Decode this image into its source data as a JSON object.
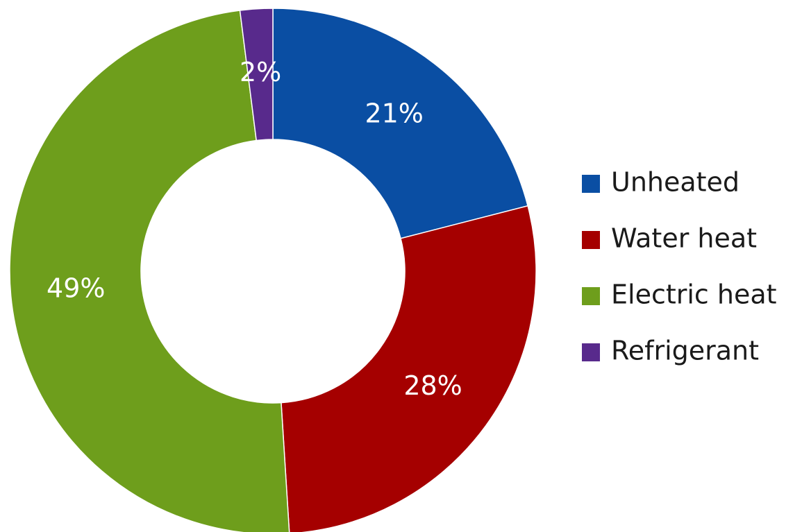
{
  "chart_data": {
    "type": "donut",
    "categories": [
      "Unheated",
      "Water heat",
      "Electric heat",
      "Refrigerant"
    ],
    "values": [
      21,
      28,
      49,
      2
    ],
    "value_labels": [
      "21%",
      "28%",
      "49%",
      "2%"
    ],
    "colors": [
      "#0a4ea3",
      "#a50000",
      "#6e9e1c",
      "#582a8c"
    ],
    "legend": "right"
  }
}
